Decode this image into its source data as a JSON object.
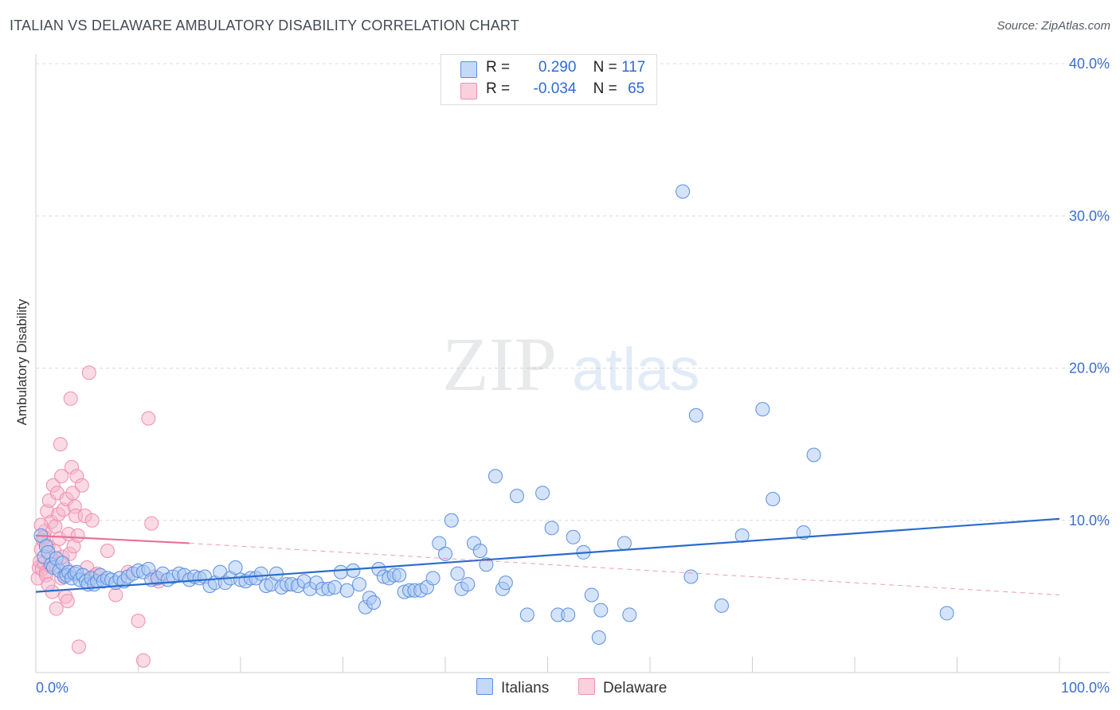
{
  "header": {
    "title": "ITALIAN VS DELAWARE AMBULATORY DISABILITY CORRELATION CHART",
    "source": "Source: ZipAtlas.com"
  },
  "watermark": {
    "zip": "ZIP",
    "atlas": "atlas"
  },
  "legend": {
    "rows": [
      {
        "r_label": "R =",
        "r_value": "0.290",
        "n_label": "N =",
        "n_value": "117",
        "color": "#a9c8f3"
      },
      {
        "r_label": "R =",
        "r_value": "-0.034",
        "n_label": "N =",
        "n_value": "65",
        "color": "#f6b6ca"
      }
    ]
  },
  "bottom_legend": [
    {
      "label": "Italians",
      "color": "#a9c8f3"
    },
    {
      "label": "Delaware",
      "color": "#f6b6ca"
    }
  ],
  "chart_data": {
    "type": "scatter",
    "title": "ITALIAN VS DELAWARE AMBULATORY DISABILITY CORRELATION CHART",
    "xlabel": "",
    "ylabel": "Ambulatory Disability",
    "xlim": [
      0,
      100
    ],
    "ylim": [
      0,
      40
    ],
    "x_tick_labels": [
      "0.0%",
      "100.0%"
    ],
    "y_ticks": [
      10,
      20,
      30,
      40
    ],
    "y_tick_labels": [
      "10.0%",
      "20.0%",
      "30.0%",
      "40.0%"
    ],
    "grid": true,
    "legend_position": "top-center",
    "series": [
      {
        "name": "Italians",
        "color": "#5b8fe0",
        "fill": "#a9c8f3",
        "trend": {
          "x": [
            0,
            100
          ],
          "y": [
            5.3,
            10.1
          ],
          "style": "solid",
          "color": "#2a6ccd"
        },
        "points": [
          [
            0.5,
            9.0
          ],
          [
            0.8,
            7.6
          ],
          [
            1.0,
            8.3
          ],
          [
            1.2,
            7.9
          ],
          [
            1.5,
            7.1
          ],
          [
            1.7,
            6.9
          ],
          [
            2.0,
            7.5
          ],
          [
            2.3,
            6.7
          ],
          [
            2.6,
            7.2
          ],
          [
            2.8,
            6.3
          ],
          [
            3.0,
            6.4
          ],
          [
            3.2,
            6.6
          ],
          [
            3.5,
            6.2
          ],
          [
            3.8,
            6.5
          ],
          [
            4.0,
            6.6
          ],
          [
            4.3,
            6.1
          ],
          [
            4.6,
            6.4
          ],
          [
            4.9,
            6.0
          ],
          [
            5.1,
            5.8
          ],
          [
            5.4,
            6.2
          ],
          [
            5.7,
            5.8
          ],
          [
            6.0,
            6.0
          ],
          [
            6.3,
            6.4
          ],
          [
            6.6,
            6.0
          ],
          [
            7.0,
            6.2
          ],
          [
            7.4,
            6.1
          ],
          [
            7.8,
            5.9
          ],
          [
            8.2,
            6.2
          ],
          [
            8.6,
            6.0
          ],
          [
            9.0,
            6.3
          ],
          [
            9.5,
            6.5
          ],
          [
            10.0,
            6.7
          ],
          [
            10.5,
            6.6
          ],
          [
            11.0,
            6.8
          ],
          [
            11.3,
            6.1
          ],
          [
            11.9,
            6.2
          ],
          [
            12.4,
            6.5
          ],
          [
            12.9,
            6.1
          ],
          [
            13.4,
            6.3
          ],
          [
            14.0,
            6.5
          ],
          [
            14.5,
            6.4
          ],
          [
            15.0,
            6.1
          ],
          [
            15.5,
            6.3
          ],
          [
            16.0,
            6.2
          ],
          [
            16.5,
            6.3
          ],
          [
            17.0,
            5.7
          ],
          [
            17.5,
            5.9
          ],
          [
            18.0,
            6.6
          ],
          [
            18.5,
            5.9
          ],
          [
            19.0,
            6.2
          ],
          [
            19.5,
            6.9
          ],
          [
            20.0,
            6.1
          ],
          [
            20.5,
            6.0
          ],
          [
            21.0,
            6.2
          ],
          [
            21.5,
            6.2
          ],
          [
            22.0,
            6.5
          ],
          [
            22.5,
            5.7
          ],
          [
            23.0,
            5.8
          ],
          [
            23.5,
            6.5
          ],
          [
            24.0,
            5.6
          ],
          [
            24.5,
            5.8
          ],
          [
            25.0,
            5.8
          ],
          [
            25.6,
            5.7
          ],
          [
            26.2,
            6.0
          ],
          [
            26.8,
            5.5
          ],
          [
            27.4,
            5.9
          ],
          [
            28.0,
            5.5
          ],
          [
            28.6,
            5.5
          ],
          [
            29.2,
            5.6
          ],
          [
            29.8,
            6.6
          ],
          [
            30.4,
            5.4
          ],
          [
            31.0,
            6.7
          ],
          [
            31.6,
            5.8
          ],
          [
            32.2,
            4.3
          ],
          [
            32.6,
            4.9
          ],
          [
            33.0,
            4.6
          ],
          [
            33.5,
            6.8
          ],
          [
            34.0,
            6.3
          ],
          [
            34.5,
            6.2
          ],
          [
            35.0,
            6.4
          ],
          [
            35.5,
            6.4
          ],
          [
            36.0,
            5.3
          ],
          [
            36.5,
            5.4
          ],
          [
            37.0,
            5.4
          ],
          [
            37.6,
            5.4
          ],
          [
            38.2,
            5.6
          ],
          [
            38.8,
            6.2
          ],
          [
            39.4,
            8.5
          ],
          [
            40.0,
            7.8
          ],
          [
            40.6,
            10.0
          ],
          [
            41.2,
            6.5
          ],
          [
            41.6,
            5.5
          ],
          [
            42.2,
            5.8
          ],
          [
            42.8,
            8.5
          ],
          [
            43.4,
            8.0
          ],
          [
            44.0,
            7.1
          ],
          [
            44.9,
            12.9
          ],
          [
            45.6,
            5.5
          ],
          [
            45.9,
            5.9
          ],
          [
            47.0,
            11.6
          ],
          [
            48.0,
            3.8
          ],
          [
            49.5,
            11.8
          ],
          [
            50.4,
            9.5
          ],
          [
            51.0,
            3.8
          ],
          [
            52.0,
            3.8
          ],
          [
            52.5,
            8.9
          ],
          [
            53.5,
            7.9
          ],
          [
            54.3,
            5.1
          ],
          [
            55.0,
            2.3
          ],
          [
            55.2,
            4.1
          ],
          [
            57.5,
            8.5
          ],
          [
            58.0,
            3.8
          ],
          [
            63.2,
            31.6
          ],
          [
            64.0,
            6.3
          ],
          [
            64.5,
            16.9
          ],
          [
            67.0,
            4.4
          ],
          [
            69.0,
            9.0
          ],
          [
            71.0,
            17.3
          ],
          [
            72.0,
            11.4
          ],
          [
            75.0,
            9.2
          ],
          [
            76.0,
            14.3
          ],
          [
            89.0,
            3.9
          ]
        ]
      },
      {
        "name": "Delaware",
        "color": "#ef8fb0",
        "fill": "#f6b6ca",
        "trend": {
          "x": [
            0,
            15
          ],
          "y": [
            9.0,
            8.5
          ],
          "style": "solid",
          "color": "#e8709a",
          "extension": {
            "x": [
              15,
              100
            ],
            "y": [
              8.5,
              5.1
            ],
            "style": "dashed"
          }
        },
        "points": [
          [
            0.2,
            6.2
          ],
          [
            0.3,
            6.9
          ],
          [
            0.4,
            7.3
          ],
          [
            0.5,
            8.1
          ],
          [
            0.6,
            6.8
          ],
          [
            0.7,
            8.7
          ],
          [
            0.8,
            7.2
          ],
          [
            0.9,
            9.3
          ],
          [
            1.0,
            6.6
          ],
          [
            1.1,
            10.6
          ],
          [
            1.2,
            8.3
          ],
          [
            1.3,
            11.3
          ],
          [
            1.4,
            7.0
          ],
          [
            1.5,
            9.9
          ],
          [
            1.6,
            5.3
          ],
          [
            1.7,
            12.3
          ],
          [
            1.8,
            8.0
          ],
          [
            1.9,
            9.6
          ],
          [
            2.0,
            4.2
          ],
          [
            2.1,
            11.8
          ],
          [
            2.2,
            10.4
          ],
          [
            2.3,
            8.8
          ],
          [
            2.4,
            15.0
          ],
          [
            2.5,
            12.9
          ],
          [
            2.6,
            7.6
          ],
          [
            2.7,
            10.7
          ],
          [
            2.8,
            6.3
          ],
          [
            2.9,
            5.0
          ],
          [
            3.0,
            11.4
          ],
          [
            3.1,
            4.7
          ],
          [
            3.2,
            9.1
          ],
          [
            3.3,
            7.8
          ],
          [
            3.4,
            18.0
          ],
          [
            3.5,
            13.5
          ],
          [
            3.6,
            11.8
          ],
          [
            3.7,
            8.3
          ],
          [
            3.8,
            10.9
          ],
          [
            3.9,
            10.3
          ],
          [
            4.0,
            12.9
          ],
          [
            4.1,
            9.0
          ],
          [
            4.2,
            1.7
          ],
          [
            4.5,
            12.3
          ],
          [
            4.8,
            10.3
          ],
          [
            5.0,
            6.9
          ],
          [
            5.2,
            19.7
          ],
          [
            5.5,
            10.0
          ],
          [
            5.8,
            6.4
          ],
          [
            6.0,
            6.5
          ],
          [
            7.0,
            8.0
          ],
          [
            7.8,
            5.1
          ],
          [
            9.0,
            6.6
          ],
          [
            10.0,
            3.4
          ],
          [
            10.5,
            0.8
          ],
          [
            11.0,
            16.7
          ],
          [
            11.3,
            9.8
          ],
          [
            11.6,
            6.3
          ],
          [
            12.0,
            6.0
          ],
          [
            1.0,
            6.4
          ],
          [
            1.5,
            7.5
          ],
          [
            2.0,
            7.0
          ],
          [
            0.5,
            9.7
          ],
          [
            1.2,
            5.8
          ],
          [
            2.5,
            6.2
          ],
          [
            3.0,
            6.8
          ],
          [
            0.8,
            8.9
          ]
        ]
      }
    ]
  }
}
